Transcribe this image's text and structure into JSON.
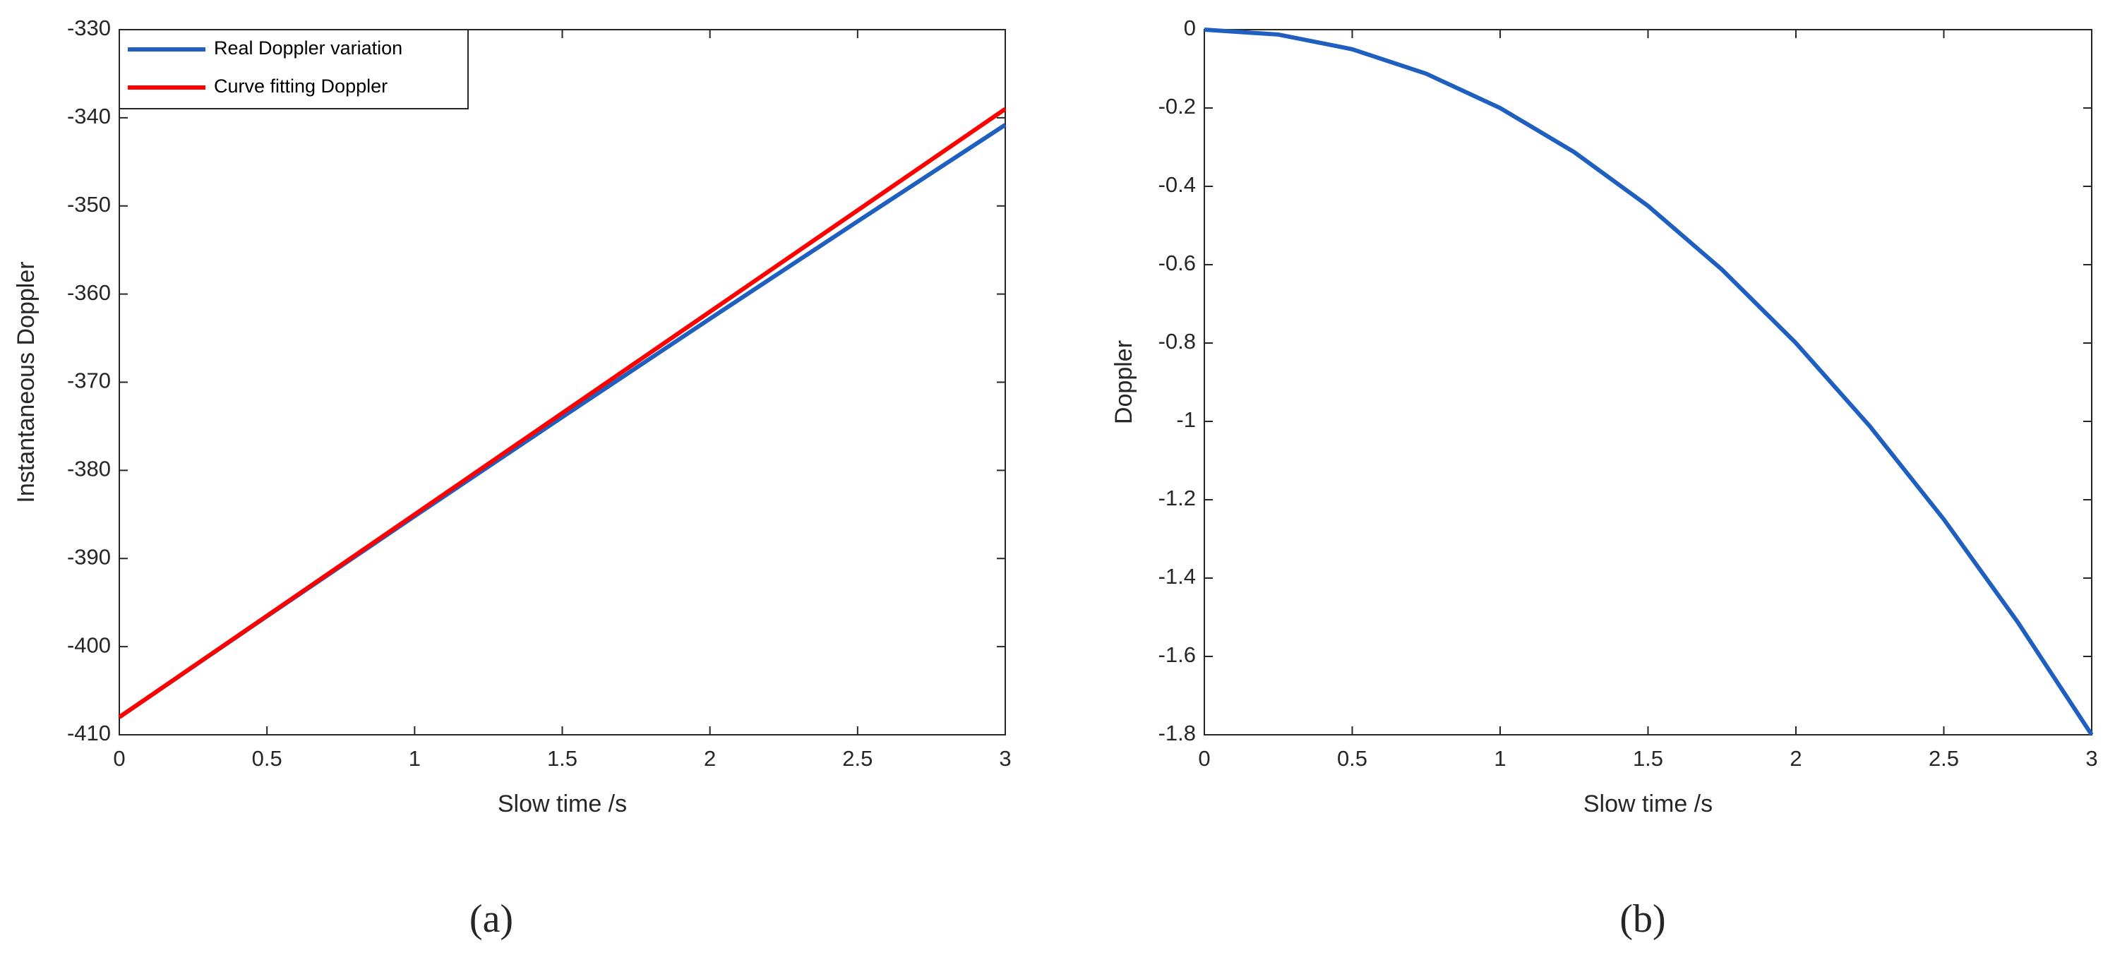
{
  "chart_data": [
    {
      "type": "line",
      "caption": "(a)",
      "xlabel": "Slow time /s",
      "ylabel": "Instantaneous Doppler",
      "x": [
        0,
        0.5,
        1,
        1.5,
        2,
        2.5,
        3
      ],
      "series": [
        {
          "name": "Real Doppler variation",
          "color": "#1f5fbf",
          "values": [
            -408,
            -396.55,
            -385.2,
            -373.95,
            -362.8,
            -351.75,
            -340.8
          ]
        },
        {
          "name": "Curve fitting Doppler",
          "color": "#ff0000",
          "values": [
            -408,
            -396.5,
            -385,
            -373.5,
            -362,
            -350.5,
            -339
          ]
        }
      ],
      "xlim": [
        0,
        3
      ],
      "xticks": [
        0,
        0.5,
        1,
        1.5,
        2,
        2.5,
        3
      ],
      "ylim": [
        -410,
        -330
      ],
      "yticks": [
        -410,
        -400,
        -390,
        -380,
        -370,
        -360,
        -350,
        -340,
        -330
      ],
      "legend": "upper left",
      "grid": false
    },
    {
      "type": "line",
      "caption": "(b)",
      "xlabel": "Slow time /s",
      "ylabel": "Doppler",
      "x": [
        0,
        0.25,
        0.5,
        0.75,
        1,
        1.25,
        1.5,
        1.75,
        2,
        2.25,
        2.5,
        2.75,
        3
      ],
      "series": [
        {
          "color": "#1f5fbf",
          "values": [
            0,
            -0.0125,
            -0.05,
            -0.1125,
            -0.2,
            -0.3125,
            -0.45,
            -0.6125,
            -0.8,
            -1.0125,
            -1.25,
            -1.5125,
            -1.8
          ]
        }
      ],
      "xlim": [
        0,
        3
      ],
      "xticks": [
        0,
        0.5,
        1,
        1.5,
        2,
        2.5,
        3
      ],
      "ylim": [
        -1.8,
        0
      ],
      "yticks": [
        -1.8,
        -1.6,
        -1.4,
        -1.2,
        -1,
        -0.8,
        -0.6,
        -0.4,
        -0.2,
        0
      ],
      "grid": false
    }
  ]
}
